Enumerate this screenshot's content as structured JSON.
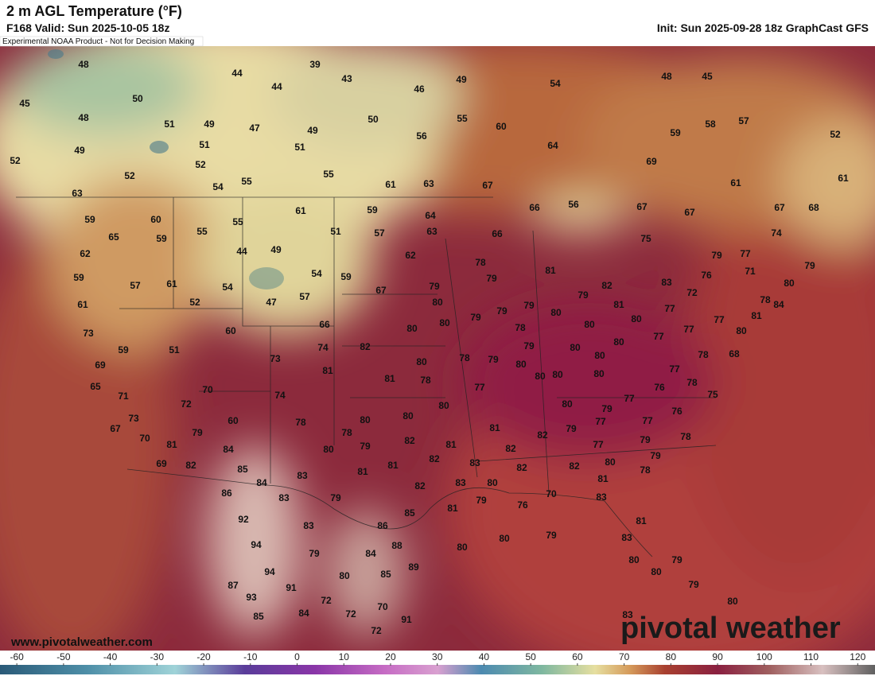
{
  "header": {
    "title": "2 m AGL Temperature (°F)",
    "valid": "F168 Valid: Sun 2025-10-05 18z",
    "init": "Init: Sun 2025-09-28 18z GraphCast GFS",
    "note": "Experimental NOAA Product - Not for Decision Making"
  },
  "map": {
    "labels": [
      48,
      45,
      48,
      49,
      52,
      50,
      51,
      49,
      47,
      51,
      52,
      52,
      54,
      55,
      44,
      39,
      43,
      44,
      49,
      51,
      55,
      46,
      49,
      50,
      55,
      56,
      60,
      54,
      64,
      61,
      63,
      67,
      69,
      59,
      48,
      45,
      58,
      57,
      52,
      61,
      61,
      67,
      67,
      67,
      68,
      74,
      75,
      56,
      66,
      66,
      63,
      59,
      60,
      65,
      59,
      62,
      59,
      57,
      61,
      61,
      52,
      54,
      55,
      55,
      44,
      49,
      61,
      59,
      51,
      57,
      64,
      63,
      62,
      54,
      59,
      57,
      47,
      67,
      79,
      78,
      79,
      81,
      80,
      66,
      60,
      73,
      59,
      51,
      69,
      65,
      71,
      73,
      67,
      70,
      81,
      69,
      82,
      70,
      72,
      79,
      60,
      74,
      73,
      81,
      74,
      82,
      80,
      80,
      79,
      79,
      79,
      78,
      80,
      79,
      82,
      81,
      80,
      80,
      83,
      76,
      72,
      79,
      77,
      71,
      79,
      80,
      78,
      84,
      81,
      80,
      77,
      77,
      77,
      77,
      78,
      68,
      77,
      78,
      76,
      75,
      76,
      78,
      77,
      79,
      77,
      79,
      79,
      78,
      80,
      81,
      77,
      77,
      79,
      80,
      80,
      80,
      80,
      80,
      80,
      80,
      79,
      80,
      79,
      78,
      80,
      81,
      78,
      77,
      80,
      80,
      81,
      80,
      78,
      79,
      78,
      80,
      82,
      81,
      82,
      83,
      82,
      82,
      82,
      82,
      80,
      81,
      81,
      82,
      83,
      81,
      85,
      79,
      76,
      70,
      83,
      85,
      84,
      84,
      83,
      83,
      79,
      86,
      92,
      94,
      94,
      83,
      79,
      86,
      88,
      84,
      89,
      85,
      80,
      91,
      93,
      87,
      85,
      84,
      72,
      72,
      70,
      72,
      91,
      80,
      80,
      79,
      83,
      81,
      80,
      80,
      79,
      79,
      80,
      83
    ]
  },
  "colorbar": {
    "lim": [
      -63.6,
      123.7
    ],
    "ticks": [
      -60,
      -50,
      -40,
      -30,
      -20,
      -10,
      0,
      10,
      20,
      30,
      40,
      50,
      60,
      70,
      80,
      90,
      100,
      110,
      120
    ]
  },
  "footer": {
    "url": "www.pivotalweather.com",
    "brand": "pivotal weather"
  }
}
